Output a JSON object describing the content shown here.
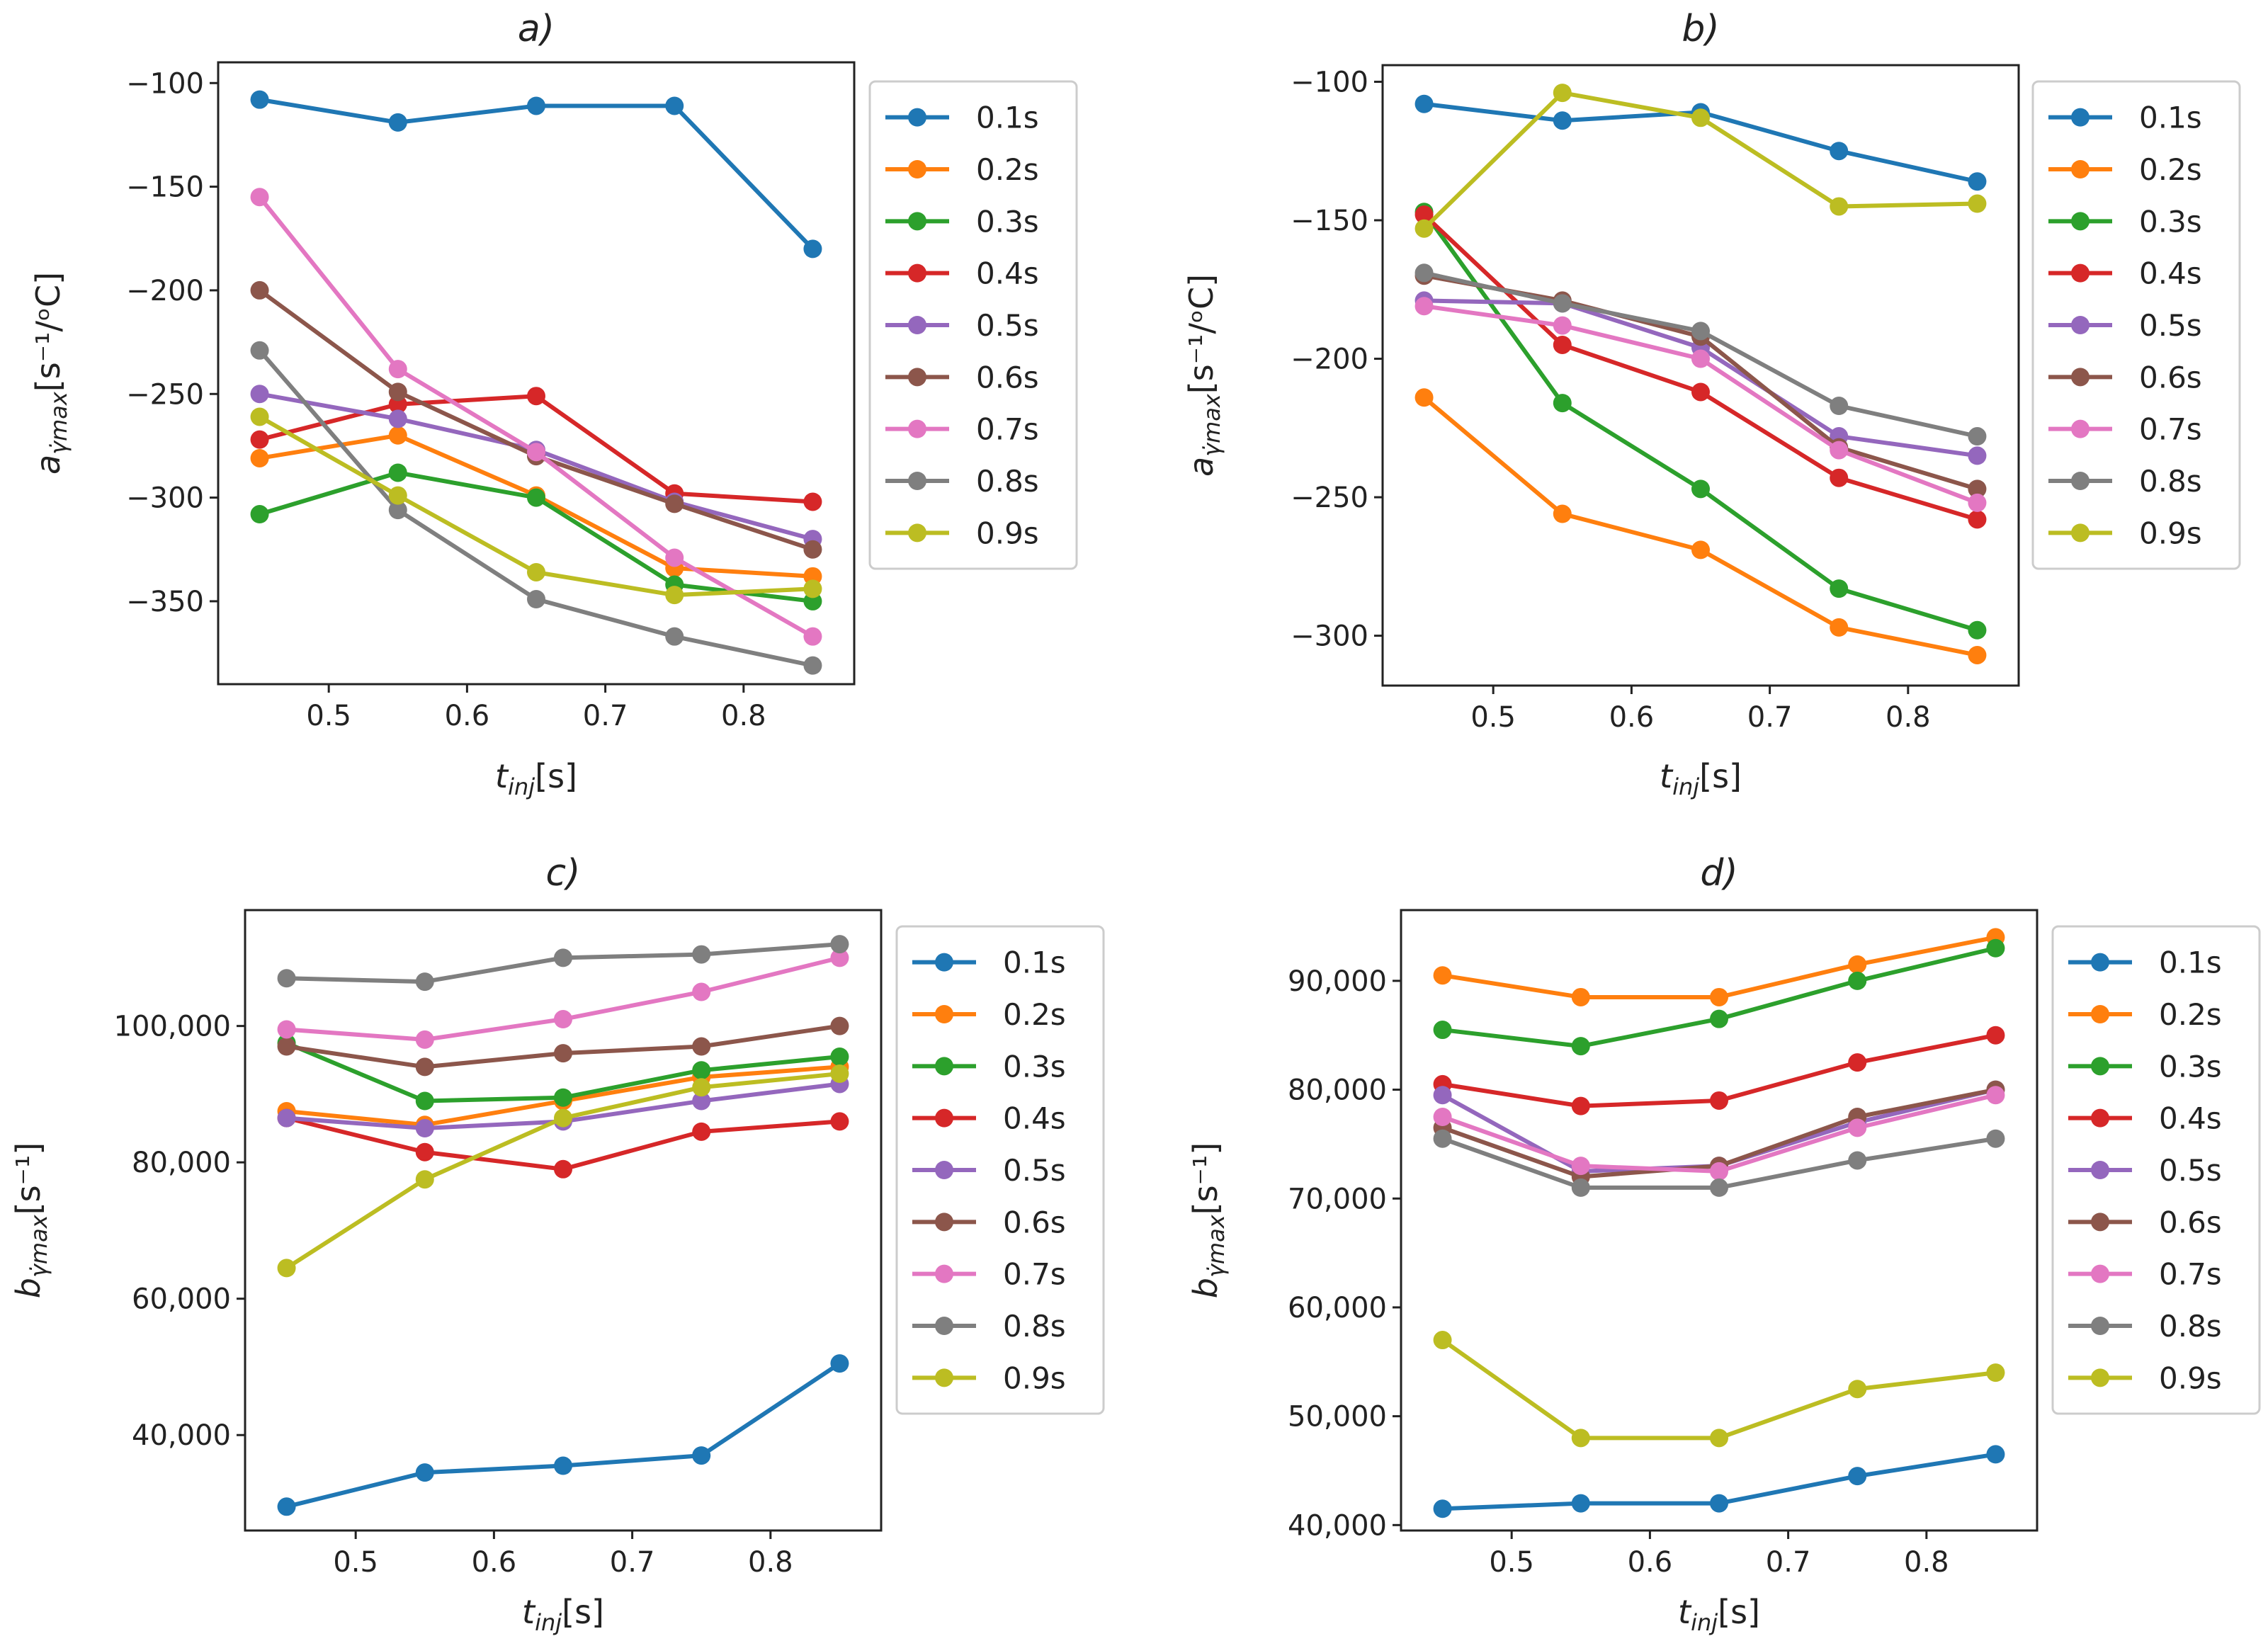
{
  "figure": {
    "palette": [
      "#1f77b4",
      "#ff7f0e",
      "#2ca02c",
      "#d62728",
      "#9467bd",
      "#8c564b",
      "#e377c2",
      "#7f7f7f",
      "#bcbd22"
    ]
  },
  "chart_data": [
    {
      "type": "line",
      "title": "a)",
      "xlabel": "t_inj[s]",
      "ylabel": "a_γ̇max[s⁻¹/ᵒC]",
      "x": [
        0.45,
        0.55,
        0.65,
        0.75,
        0.85
      ],
      "xlim": [
        0.42,
        0.88
      ],
      "ylim": [
        -390,
        -90
      ],
      "xticks": [
        0.5,
        0.6,
        0.7,
        0.8
      ],
      "xtick_labels": [
        "0.5",
        "0.6",
        "0.7",
        "0.8"
      ],
      "yticks": [
        -100,
        -150,
        -200,
        -250,
        -300,
        -350
      ],
      "ytick_labels": [
        "−100",
        "−150",
        "−200",
        "−250",
        "−300",
        "−350"
      ],
      "legend_position": "right",
      "series": [
        {
          "name": "0.1s",
          "values": [
            -108,
            -119,
            -111,
            -111,
            -180
          ]
        },
        {
          "name": "0.2s",
          "values": [
            -281,
            -270,
            -299,
            -334,
            -338
          ]
        },
        {
          "name": "0.3s",
          "values": [
            -308,
            -288,
            -300,
            -342,
            -350
          ]
        },
        {
          "name": "0.4s",
          "values": [
            -272,
            -255,
            -251,
            -298,
            -302
          ]
        },
        {
          "name": "0.5s",
          "values": [
            -250,
            -262,
            -277,
            -302,
            -320
          ]
        },
        {
          "name": "0.6s",
          "values": [
            -200,
            -249,
            -280,
            -303,
            -325
          ]
        },
        {
          "name": "0.7s",
          "values": [
            -155,
            -238,
            -278,
            -329,
            -367
          ]
        },
        {
          "name": "0.8s",
          "values": [
            -229,
            -306,
            -349,
            -367,
            -381
          ]
        },
        {
          "name": "0.9s",
          "values": [
            -261,
            -299,
            -336,
            -347,
            -344
          ]
        }
      ]
    },
    {
      "type": "line",
      "title": "b)",
      "xlabel": "t_inj[s]",
      "ylabel": "a_γ̇max[s⁻¹/ᵒC]",
      "x": [
        0.45,
        0.55,
        0.65,
        0.75,
        0.85
      ],
      "xlim": [
        0.42,
        0.88
      ],
      "ylim": [
        -318,
        -94
      ],
      "xticks": [
        0.5,
        0.6,
        0.7,
        0.8
      ],
      "xtick_labels": [
        "0.5",
        "0.6",
        "0.7",
        "0.8"
      ],
      "yticks": [
        -100,
        -150,
        -200,
        -250,
        -300
      ],
      "ytick_labels": [
        "−100",
        "−150",
        "−200",
        "−250",
        "−300"
      ],
      "legend_position": "right",
      "series": [
        {
          "name": "0.1s",
          "values": [
            -108,
            -114,
            -111,
            -125,
            -136
          ]
        },
        {
          "name": "0.2s",
          "values": [
            -214,
            -256,
            -269,
            -297,
            -307
          ]
        },
        {
          "name": "0.3s",
          "values": [
            -147,
            -216,
            -247,
            -283,
            -298
          ]
        },
        {
          "name": "0.4s",
          "values": [
            -148,
            -195,
            -212,
            -243,
            -258
          ]
        },
        {
          "name": "0.5s",
          "values": [
            -179,
            -180,
            -196,
            -228,
            -235
          ]
        },
        {
          "name": "0.6s",
          "values": [
            -170,
            -179,
            -192,
            -232,
            -247
          ]
        },
        {
          "name": "0.7s",
          "values": [
            -181,
            -188,
            -200,
            -233,
            -252
          ]
        },
        {
          "name": "0.8s",
          "values": [
            -169,
            -180,
            -190,
            -217,
            -228
          ]
        },
        {
          "name": "0.9s",
          "values": [
            -153,
            -104,
            -113,
            -145,
            -144
          ]
        }
      ]
    },
    {
      "type": "line",
      "title": "c)",
      "xlabel": "t_inj[s]",
      "ylabel": "b_γ̇max[s⁻¹]",
      "x": [
        0.45,
        0.55,
        0.65,
        0.75,
        0.85
      ],
      "xlim": [
        0.42,
        0.88
      ],
      "ylim": [
        26000,
        117000
      ],
      "xticks": [
        0.5,
        0.6,
        0.7,
        0.8
      ],
      "xtick_labels": [
        "0.5",
        "0.6",
        "0.7",
        "0.8"
      ],
      "yticks": [
        40000,
        60000,
        80000,
        100000
      ],
      "ytick_labels": [
        "40,000",
        "60,000",
        "80,000",
        "100,000"
      ],
      "legend_position": "right",
      "series": [
        {
          "name": "0.1s",
          "values": [
            29500,
            34500,
            35500,
            37000,
            50500
          ]
        },
        {
          "name": "0.2s",
          "values": [
            87500,
            85500,
            89000,
            92500,
            94000
          ]
        },
        {
          "name": "0.3s",
          "values": [
            97500,
            89000,
            89500,
            93500,
            95500
          ]
        },
        {
          "name": "0.4s",
          "values": [
            86500,
            81500,
            79000,
            84500,
            86000
          ]
        },
        {
          "name": "0.5s",
          "values": [
            86500,
            85000,
            86000,
            89000,
            91500
          ]
        },
        {
          "name": "0.6s",
          "values": [
            97000,
            94000,
            96000,
            97000,
            100000
          ]
        },
        {
          "name": "0.7s",
          "values": [
            99500,
            98000,
            101000,
            105000,
            110000
          ]
        },
        {
          "name": "0.8s",
          "values": [
            107000,
            106500,
            110000,
            110500,
            112000
          ]
        },
        {
          "name": "0.9s",
          "values": [
            64500,
            77500,
            86500,
            91000,
            93000
          ]
        }
      ]
    },
    {
      "type": "line",
      "title": "d)",
      "xlabel": "t_inj[s]",
      "ylabel": "b_γ̇max[s⁻¹]",
      "x": [
        0.45,
        0.55,
        0.65,
        0.75,
        0.85
      ],
      "xlim": [
        0.42,
        0.88
      ],
      "ylim": [
        39500,
        96500
      ],
      "xticks": [
        0.5,
        0.6,
        0.7,
        0.8
      ],
      "xtick_labels": [
        "0.5",
        "0.6",
        "0.7",
        "0.8"
      ],
      "yticks": [
        40000,
        50000,
        60000,
        70000,
        80000,
        90000
      ],
      "ytick_labels": [
        "40,000",
        "50,000",
        "60,000",
        "70,000",
        "80,000",
        "90,000"
      ],
      "legend_position": "right",
      "series": [
        {
          "name": "0.1s",
          "values": [
            41500,
            42000,
            42000,
            44500,
            46500
          ]
        },
        {
          "name": "0.2s",
          "values": [
            90500,
            88500,
            88500,
            91500,
            94000
          ]
        },
        {
          "name": "0.3s",
          "values": [
            85500,
            84000,
            86500,
            90000,
            93000
          ]
        },
        {
          "name": "0.4s",
          "values": [
            80500,
            78500,
            79000,
            82500,
            85000
          ]
        },
        {
          "name": "0.5s",
          "values": [
            79500,
            72500,
            73000,
            77000,
            80000
          ]
        },
        {
          "name": "0.6s",
          "values": [
            76500,
            72000,
            73000,
            77500,
            80000
          ]
        },
        {
          "name": "0.7s",
          "values": [
            77500,
            73000,
            72500,
            76500,
            79500
          ]
        },
        {
          "name": "0.8s",
          "values": [
            75500,
            71000,
            71000,
            73500,
            75500
          ]
        },
        {
          "name": "0.9s",
          "values": [
            57000,
            48000,
            48000,
            52500,
            54000
          ]
        }
      ]
    }
  ]
}
